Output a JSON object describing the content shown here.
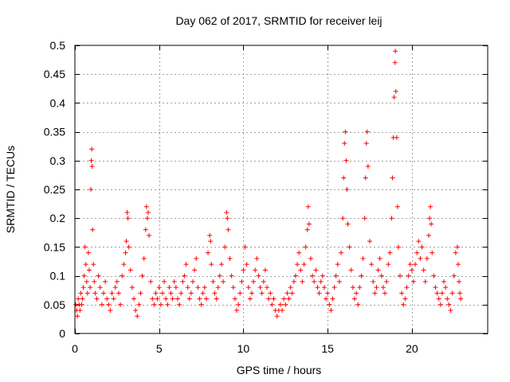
{
  "chart_data": {
    "type": "scatter",
    "title": "Day 062 of 2017, SRMTID for receiver leij",
    "xlabel": "GPS time / hours",
    "ylabel": "SRMTID / TECUs",
    "xlim": [
      0,
      24.5
    ],
    "ylim": [
      0,
      0.5
    ],
    "xticks": [
      0,
      5,
      10,
      15,
      20
    ],
    "yticks": [
      0,
      0.05,
      0.1,
      0.15,
      0.2,
      0.25,
      0.3,
      0.35,
      0.4,
      0.45,
      0.5
    ],
    "xtick_labels": [
      "0",
      "5",
      "10",
      "15",
      "20"
    ],
    "ytick_labels": [
      "0",
      "0.05",
      "0.1",
      "0.15",
      "0.2",
      "0.25",
      "0.3",
      "0.35",
      "0.4",
      "0.45",
      "0.5"
    ],
    "grid": true,
    "marker": "+",
    "colors": {
      "series": "#ff0000",
      "grid": "#a0a0a0",
      "axis": "#000000"
    },
    "series": [
      {
        "name": "SRMTID",
        "points": [
          [
            0.05,
            0.05
          ],
          [
            0.1,
            0.04
          ],
          [
            0.15,
            0.03
          ],
          [
            0.2,
            0.06
          ],
          [
            0.25,
            0.05
          ],
          [
            0.3,
            0.04
          ],
          [
            0.35,
            0.07
          ],
          [
            0.4,
            0.05
          ],
          [
            0.45,
            0.06
          ],
          [
            0.5,
            0.08
          ],
          [
            0.55,
            0.1
          ],
          [
            0.6,
            0.15
          ],
          [
            0.65,
            0.12
          ],
          [
            0.7,
            0.09
          ],
          [
            0.75,
            0.07
          ],
          [
            0.8,
            0.14
          ],
          [
            0.85,
            0.11
          ],
          [
            0.9,
            0.08
          ],
          [
            0.95,
            0.25
          ],
          [
            0.97,
            0.3
          ],
          [
            1.0,
            0.32
          ],
          [
            1.02,
            0.29
          ],
          [
            1.05,
            0.18
          ],
          [
            1.1,
            0.12
          ],
          [
            1.15,
            0.09
          ],
          [
            1.2,
            0.07
          ],
          [
            1.3,
            0.06
          ],
          [
            1.4,
            0.1
          ],
          [
            1.5,
            0.08
          ],
          [
            1.6,
            0.05
          ],
          [
            1.7,
            0.07
          ],
          [
            1.8,
            0.09
          ],
          [
            1.9,
            0.06
          ],
          [
            2.0,
            0.05
          ],
          [
            2.1,
            0.04
          ],
          [
            2.2,
            0.07
          ],
          [
            2.3,
            0.06
          ],
          [
            2.4,
            0.08
          ],
          [
            2.5,
            0.09
          ],
          [
            2.6,
            0.07
          ],
          [
            2.7,
            0.05
          ],
          [
            2.8,
            0.1
          ],
          [
            2.9,
            0.12
          ],
          [
            3.0,
            0.14
          ],
          [
            3.05,
            0.16
          ],
          [
            3.1,
            0.21
          ],
          [
            3.15,
            0.2
          ],
          [
            3.2,
            0.15
          ],
          [
            3.3,
            0.11
          ],
          [
            3.4,
            0.08
          ],
          [
            3.5,
            0.06
          ],
          [
            3.6,
            0.04
          ],
          [
            3.7,
            0.03
          ],
          [
            3.8,
            0.05
          ],
          [
            3.9,
            0.07
          ],
          [
            4.0,
            0.1
          ],
          [
            4.1,
            0.13
          ],
          [
            4.2,
            0.18
          ],
          [
            4.25,
            0.22
          ],
          [
            4.3,
            0.2
          ],
          [
            4.35,
            0.21
          ],
          [
            4.4,
            0.17
          ],
          [
            4.5,
            0.09
          ],
          [
            4.6,
            0.06
          ],
          [
            4.7,
            0.05
          ],
          [
            4.8,
            0.07
          ],
          [
            4.9,
            0.06
          ],
          [
            5.0,
            0.08
          ],
          [
            5.1,
            0.05
          ],
          [
            5.2,
            0.07
          ],
          [
            5.3,
            0.09
          ],
          [
            5.4,
            0.06
          ],
          [
            5.5,
            0.05
          ],
          [
            5.6,
            0.08
          ],
          [
            5.7,
            0.07
          ],
          [
            5.8,
            0.06
          ],
          [
            5.9,
            0.09
          ],
          [
            6.0,
            0.08
          ],
          [
            6.1,
            0.06
          ],
          [
            6.2,
            0.05
          ],
          [
            6.3,
            0.07
          ],
          [
            6.4,
            0.09
          ],
          [
            6.5,
            0.1
          ],
          [
            6.6,
            0.12
          ],
          [
            6.7,
            0.08
          ],
          [
            6.8,
            0.06
          ],
          [
            6.9,
            0.07
          ],
          [
            7.0,
            0.09
          ],
          [
            7.1,
            0.11
          ],
          [
            7.2,
            0.13
          ],
          [
            7.3,
            0.08
          ],
          [
            7.4,
            0.06
          ],
          [
            7.5,
            0.05
          ],
          [
            7.6,
            0.07
          ],
          [
            7.7,
            0.08
          ],
          [
            7.8,
            0.06
          ],
          [
            7.9,
            0.14
          ],
          [
            8.0,
            0.17
          ],
          [
            8.05,
            0.16
          ],
          [
            8.1,
            0.12
          ],
          [
            8.2,
            0.09
          ],
          [
            8.3,
            0.07
          ],
          [
            8.4,
            0.06
          ],
          [
            8.5,
            0.08
          ],
          [
            8.6,
            0.1
          ],
          [
            8.7,
            0.12
          ],
          [
            8.8,
            0.09
          ],
          [
            8.9,
            0.15
          ],
          [
            9.0,
            0.21
          ],
          [
            9.05,
            0.2
          ],
          [
            9.1,
            0.18
          ],
          [
            9.2,
            0.13
          ],
          [
            9.3,
            0.1
          ],
          [
            9.4,
            0.08
          ],
          [
            9.5,
            0.06
          ],
          [
            9.6,
            0.04
          ],
          [
            9.7,
            0.05
          ],
          [
            9.8,
            0.07
          ],
          [
            9.9,
            0.09
          ],
          [
            10.0,
            0.11
          ],
          [
            10.1,
            0.15
          ],
          [
            10.2,
            0.12
          ],
          [
            10.3,
            0.08
          ],
          [
            10.4,
            0.06
          ],
          [
            10.5,
            0.07
          ],
          [
            10.6,
            0.09
          ],
          [
            10.7,
            0.11
          ],
          [
            10.8,
            0.13
          ],
          [
            10.9,
            0.1
          ],
          [
            11.0,
            0.08
          ],
          [
            11.1,
            0.07
          ],
          [
            11.2,
            0.09
          ],
          [
            11.3,
            0.11
          ],
          [
            11.4,
            0.08
          ],
          [
            11.5,
            0.06
          ],
          [
            11.6,
            0.07
          ],
          [
            11.7,
            0.05
          ],
          [
            11.8,
            0.06
          ],
          [
            11.9,
            0.04
          ],
          [
            12.0,
            0.03
          ],
          [
            12.1,
            0.04
          ],
          [
            12.2,
            0.05
          ],
          [
            12.3,
            0.04
          ],
          [
            12.4,
            0.06
          ],
          [
            12.5,
            0.05
          ],
          [
            12.6,
            0.07
          ],
          [
            12.7,
            0.06
          ],
          [
            12.8,
            0.08
          ],
          [
            12.9,
            0.07
          ],
          [
            13.0,
            0.09
          ],
          [
            13.1,
            0.1
          ],
          [
            13.2,
            0.12
          ],
          [
            13.3,
            0.14
          ],
          [
            13.4,
            0.11
          ],
          [
            13.5,
            0.09
          ],
          [
            13.6,
            0.12
          ],
          [
            13.7,
            0.15
          ],
          [
            13.8,
            0.18
          ],
          [
            13.85,
            0.22
          ],
          [
            13.9,
            0.19
          ],
          [
            14.0,
            0.13
          ],
          [
            14.1,
            0.1
          ],
          [
            14.2,
            0.09
          ],
          [
            14.3,
            0.11
          ],
          [
            14.4,
            0.08
          ],
          [
            14.5,
            0.07
          ],
          [
            14.6,
            0.09
          ],
          [
            14.7,
            0.1
          ],
          [
            14.8,
            0.08
          ],
          [
            14.9,
            0.06
          ],
          [
            15.0,
            0.07
          ],
          [
            15.1,
            0.05
          ],
          [
            15.2,
            0.04
          ],
          [
            15.3,
            0.06
          ],
          [
            15.4,
            0.08
          ],
          [
            15.5,
            0.1
          ],
          [
            15.6,
            0.12
          ],
          [
            15.7,
            0.09
          ],
          [
            15.8,
            0.14
          ],
          [
            15.9,
            0.2
          ],
          [
            15.95,
            0.27
          ],
          [
            16.0,
            0.33
          ],
          [
            16.05,
            0.35
          ],
          [
            16.1,
            0.3
          ],
          [
            16.15,
            0.25
          ],
          [
            16.2,
            0.19
          ],
          [
            16.3,
            0.15
          ],
          [
            16.4,
            0.11
          ],
          [
            16.5,
            0.08
          ],
          [
            16.6,
            0.06
          ],
          [
            16.7,
            0.07
          ],
          [
            16.8,
            0.05
          ],
          [
            16.9,
            0.08
          ],
          [
            17.0,
            0.1
          ],
          [
            17.1,
            0.13
          ],
          [
            17.2,
            0.2
          ],
          [
            17.25,
            0.27
          ],
          [
            17.3,
            0.33
          ],
          [
            17.35,
            0.35
          ],
          [
            17.4,
            0.29
          ],
          [
            17.5,
            0.16
          ],
          [
            17.6,
            0.12
          ],
          [
            17.7,
            0.09
          ],
          [
            17.8,
            0.07
          ],
          [
            17.9,
            0.08
          ],
          [
            18.0,
            0.11
          ],
          [
            18.1,
            0.13
          ],
          [
            18.2,
            0.1
          ],
          [
            18.3,
            0.08
          ],
          [
            18.4,
            0.07
          ],
          [
            18.5,
            0.09
          ],
          [
            18.6,
            0.12
          ],
          [
            18.7,
            0.14
          ],
          [
            18.8,
            0.2
          ],
          [
            18.85,
            0.27
          ],
          [
            18.9,
            0.34
          ],
          [
            18.95,
            0.41
          ],
          [
            19.0,
            0.47
          ],
          [
            19.02,
            0.49
          ],
          [
            19.05,
            0.42
          ],
          [
            19.1,
            0.34
          ],
          [
            19.15,
            0.22
          ],
          [
            19.2,
            0.15
          ],
          [
            19.3,
            0.1
          ],
          [
            19.4,
            0.07
          ],
          [
            19.5,
            0.05
          ],
          [
            19.6,
            0.06
          ],
          [
            19.7,
            0.08
          ],
          [
            19.8,
            0.1
          ],
          [
            19.9,
            0.12
          ],
          [
            20.0,
            0.11
          ],
          [
            20.1,
            0.09
          ],
          [
            20.2,
            0.12
          ],
          [
            20.3,
            0.14
          ],
          [
            20.4,
            0.16
          ],
          [
            20.5,
            0.13
          ],
          [
            20.6,
            0.15
          ],
          [
            20.7,
            0.11
          ],
          [
            20.8,
            0.09
          ],
          [
            20.9,
            0.13
          ],
          [
            21.0,
            0.17
          ],
          [
            21.05,
            0.2
          ],
          [
            21.1,
            0.22
          ],
          [
            21.15,
            0.19
          ],
          [
            21.2,
            0.14
          ],
          [
            21.3,
            0.1
          ],
          [
            21.4,
            0.08
          ],
          [
            21.5,
            0.07
          ],
          [
            21.6,
            0.06
          ],
          [
            21.7,
            0.05
          ],
          [
            21.8,
            0.07
          ],
          [
            21.9,
            0.09
          ],
          [
            22.0,
            0.08
          ],
          [
            22.1,
            0.06
          ],
          [
            22.2,
            0.05
          ],
          [
            22.3,
            0.04
          ],
          [
            22.4,
            0.07
          ],
          [
            22.5,
            0.1
          ],
          [
            22.6,
            0.14
          ],
          [
            22.7,
            0.15
          ],
          [
            22.75,
            0.12
          ],
          [
            22.8,
            0.09
          ],
          [
            22.85,
            0.07
          ],
          [
            22.9,
            0.06
          ]
        ]
      }
    ]
  }
}
